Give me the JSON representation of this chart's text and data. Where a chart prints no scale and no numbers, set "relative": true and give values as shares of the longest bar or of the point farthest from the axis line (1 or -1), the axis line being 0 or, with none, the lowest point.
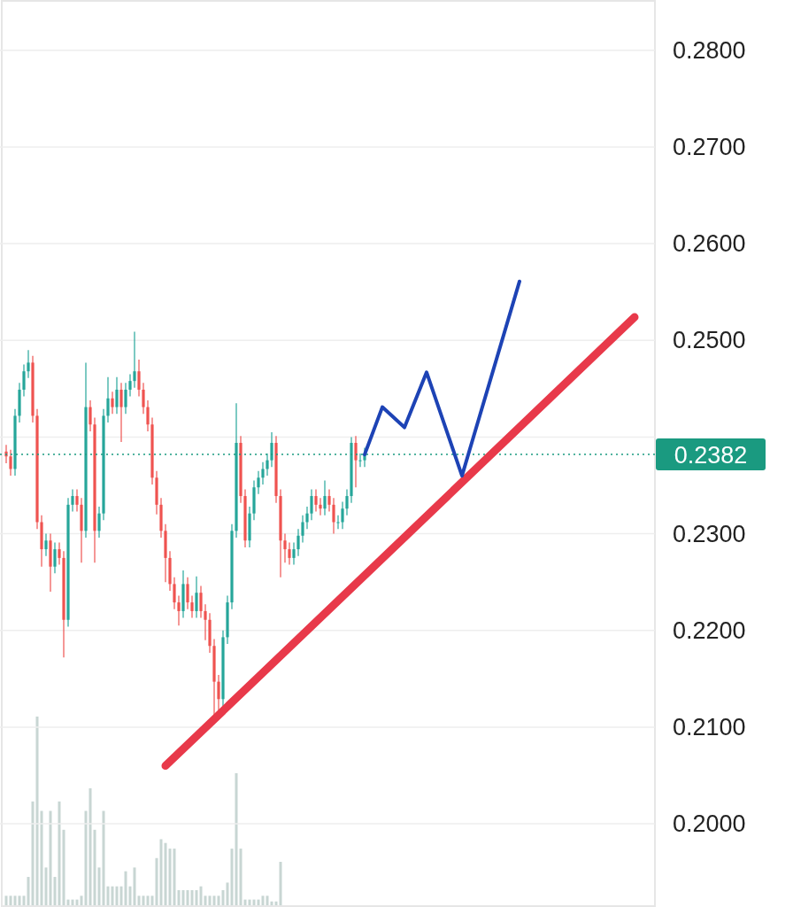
{
  "chart_data": [
    {
      "type": "candlestick",
      "tick_labels": "y",
      "grid": "y",
      "categories": [
        null,
        null,
        null,
        null,
        null,
        null,
        null,
        null,
        null,
        null,
        null,
        null,
        null,
        null,
        null,
        null,
        null,
        null,
        null,
        null,
        null,
        null,
        null,
        null,
        null,
        null,
        null,
        null,
        null,
        null,
        null,
        null,
        null,
        null,
        null,
        null,
        null,
        null,
        null,
        null,
        null,
        null,
        null,
        null,
        null,
        null,
        null,
        null,
        null,
        null,
        null,
        null,
        null,
        null,
        null,
        null,
        null,
        null,
        null,
        null,
        null,
        null,
        null,
        null,
        null,
        null,
        null,
        null,
        null,
        null,
        null,
        null,
        null,
        null,
        null,
        null,
        null,
        null,
        null,
        null,
        null,
        null,
        null,
        null,
        null,
        null,
        null,
        null,
        null,
        null,
        null,
        null,
        null,
        null,
        null,
        null,
        null,
        null,
        null,
        null,
        null,
        null,
        null,
        null,
        null,
        null,
        null,
        null,
        null,
        null,
        null,
        null,
        null,
        null,
        null,
        null,
        null,
        null,
        null,
        null,
        null,
        null,
        null,
        null,
        null,
        null,
        null,
        null,
        null,
        null,
        null,
        null,
        null,
        null,
        null,
        null,
        null,
        null,
        null,
        null,
        null,
        null,
        null
      ],
      "ohlc": [
        [
          0.2385,
          0.2392,
          0.2373,
          0.238
        ],
        [
          0.238,
          0.2387,
          0.236,
          0.2367
        ],
        [
          0.2367,
          0.2429,
          0.236,
          0.2422
        ],
        [
          0.2422,
          0.2456,
          0.2415,
          0.2449
        ],
        [
          0.2449,
          0.2475,
          0.2442,
          0.2468
        ],
        [
          0.2468,
          0.249,
          0.2461,
          0.2477
        ],
        [
          0.2477,
          0.2484,
          0.2415,
          0.2422
        ],
        [
          0.2422,
          0.2429,
          0.2305,
          0.2312
        ],
        [
          0.2312,
          0.2319,
          0.2266,
          0.2284
        ],
        [
          0.2284,
          0.23,
          0.2277,
          0.2293
        ],
        [
          0.2293,
          0.23,
          0.224,
          0.2266
        ],
        [
          0.2266,
          0.2291,
          0.2259,
          0.2284
        ],
        [
          0.2284,
          0.2291,
          0.2268,
          0.2275
        ],
        [
          0.2275,
          0.2282,
          0.2172,
          0.2211
        ],
        [
          0.2211,
          0.2337,
          0.2204,
          0.233
        ],
        [
          0.233,
          0.2346,
          0.2323,
          0.2339
        ],
        [
          0.2339,
          0.2346,
          0.2323,
          0.233
        ],
        [
          0.233,
          0.2337,
          0.227,
          0.2303
        ],
        [
          0.2303,
          0.2477,
          0.2296,
          0.2431
        ],
        [
          0.2431,
          0.2438,
          0.2406,
          0.2413
        ],
        [
          0.2413,
          0.242,
          0.227,
          0.2303
        ],
        [
          0.2303,
          0.2328,
          0.2296,
          0.2321
        ],
        [
          0.2321,
          0.2429,
          0.2314,
          0.2422
        ],
        [
          0.2422,
          0.2462,
          0.2415,
          0.244
        ],
        [
          0.244,
          0.2447,
          0.2424,
          0.2431
        ],
        [
          0.2431,
          0.2462,
          0.2424,
          0.2449
        ],
        [
          0.2449,
          0.2456,
          0.2395,
          0.2431
        ],
        [
          0.2431,
          0.2456,
          0.2424,
          0.2449
        ],
        [
          0.2449,
          0.2465,
          0.2442,
          0.2458
        ],
        [
          0.2458,
          0.2509,
          0.2451,
          0.2468
        ],
        [
          0.2468,
          0.248,
          0.2442,
          0.2449
        ],
        [
          0.2449,
          0.2456,
          0.2424,
          0.2431
        ],
        [
          0.2431,
          0.2438,
          0.2406,
          0.2413
        ],
        [
          0.2413,
          0.242,
          0.2351,
          0.2358
        ],
        [
          0.2358,
          0.2365,
          0.232,
          0.233
        ],
        [
          0.233,
          0.2337,
          0.2296,
          0.2303
        ],
        [
          0.2303,
          0.231,
          0.225,
          0.2275
        ],
        [
          0.2275,
          0.2282,
          0.2241,
          0.2248
        ],
        [
          0.2248,
          0.2255,
          0.2222,
          0.2229
        ],
        [
          0.2229,
          0.2236,
          0.2205,
          0.222
        ],
        [
          0.222,
          0.2262,
          0.2213,
          0.2248
        ],
        [
          0.2248,
          0.2255,
          0.2222,
          0.2229
        ],
        [
          0.2229,
          0.2236,
          0.2213,
          0.222
        ],
        [
          0.222,
          0.2256,
          0.2213,
          0.2239
        ],
        [
          0.2239,
          0.2246,
          0.2213,
          0.222
        ],
        [
          0.222,
          0.2227,
          0.219,
          0.2211
        ],
        [
          0.2211,
          0.2218,
          0.2177,
          0.2184
        ],
        [
          0.2184,
          0.2191,
          0.211,
          0.2147
        ],
        [
          0.2147,
          0.2154,
          0.211,
          0.2129
        ],
        [
          0.2129,
          0.22,
          0.2122,
          0.2193
        ],
        [
          0.2193,
          0.2236,
          0.2186,
          0.2229
        ],
        [
          0.2229,
          0.231,
          0.2222,
          0.2303
        ],
        [
          0.2303,
          0.2435,
          0.2296,
          0.2394
        ],
        [
          0.2394,
          0.2401,
          0.2332,
          0.2339
        ],
        [
          0.2339,
          0.2346,
          0.2286,
          0.2293
        ],
        [
          0.2293,
          0.2328,
          0.2286,
          0.2321
        ],
        [
          0.2321,
          0.2355,
          0.2314,
          0.2348
        ],
        [
          0.2348,
          0.2365,
          0.2341,
          0.2358
        ],
        [
          0.2358,
          0.2374,
          0.2351,
          0.2367
        ],
        [
          0.2367,
          0.2383,
          0.236,
          0.2376
        ],
        [
          0.2376,
          0.2405,
          0.2369,
          0.2394
        ],
        [
          0.2394,
          0.2401,
          0.2332,
          0.2339
        ],
        [
          0.2339,
          0.2346,
          0.2255,
          0.2293
        ],
        [
          0.2293,
          0.23,
          0.227,
          0.2284
        ],
        [
          0.2284,
          0.2291,
          0.2268,
          0.2275
        ],
        [
          0.2275,
          0.2291,
          0.2268,
          0.2284
        ],
        [
          0.2284,
          0.2305,
          0.2277,
          0.2298
        ],
        [
          0.2298,
          0.2319,
          0.2291,
          0.2312
        ],
        [
          0.2312,
          0.2328,
          0.2305,
          0.2321
        ],
        [
          0.2321,
          0.2346,
          0.2314,
          0.2339
        ],
        [
          0.2339,
          0.2346,
          0.2323,
          0.233
        ],
        [
          0.233,
          0.2337,
          0.2319,
          0.2326
        ],
        [
          0.2326,
          0.2355,
          0.2319,
          0.2339
        ],
        [
          0.2339,
          0.2346,
          0.2323,
          0.233
        ],
        [
          0.233,
          0.2337,
          0.23,
          0.2312
        ],
        [
          0.2312,
          0.2319,
          0.2305,
          0.2312
        ],
        [
          0.2312,
          0.2333,
          0.2305,
          0.2326
        ],
        [
          0.2326,
          0.2346,
          0.2319,
          0.2339
        ],
        [
          0.2339,
          0.24,
          0.2332,
          0.2394
        ],
        [
          0.2394,
          0.2401,
          0.2348,
          0.2376
        ],
        [
          0.2376,
          0.2383,
          0.2369,
          0.2376
        ],
        [
          0.2376,
          0.2389,
          0.2369,
          0.2382
        ],
        null,
        null,
        null,
        null,
        null,
        null,
        null,
        null,
        null,
        null,
        null,
        null,
        null,
        null,
        null,
        null,
        null,
        null,
        null,
        null,
        null,
        null,
        null,
        null,
        null,
        null,
        null,
        null,
        null,
        null,
        null,
        null,
        null,
        null,
        null,
        null,
        null,
        null,
        null,
        null,
        null,
        null,
        null,
        null,
        null,
        null,
        null,
        null,
        null,
        null,
        null,
        null,
        null,
        null,
        null,
        null,
        null,
        null,
        null,
        null,
        null
      ],
      "colors": [
        "#ef5350",
        "#ef5350",
        "#26a69a",
        "#26a69a",
        "#26a69a",
        "#26a69a",
        "#ef5350",
        "#ef5350",
        "#ef5350",
        "#26a69a",
        "#ef5350",
        "#26a69a",
        "#ef5350",
        "#ef5350",
        "#26a69a",
        "#26a69a",
        "#ef5350",
        "#ef5350",
        "#26a69a",
        "#ef5350",
        "#ef5350",
        "#26a69a",
        "#26a69a",
        "#26a69a",
        "#ef5350",
        "#26a69a",
        "#ef5350",
        "#26a69a",
        "#26a69a",
        "#26a69a",
        "#ef5350",
        "#ef5350",
        "#ef5350",
        "#ef5350",
        "#ef5350",
        "#ef5350",
        "#ef5350",
        "#ef5350",
        "#ef5350",
        "#ef5350",
        "#26a69a",
        "#ef5350",
        "#ef5350",
        "#26a69a",
        "#ef5350",
        "#ef5350",
        "#ef5350",
        "#ef5350",
        "#ef5350",
        "#26a69a",
        "#26a69a",
        "#26a69a",
        "#26a69a",
        "#ef5350",
        "#ef5350",
        "#26a69a",
        "#26a69a",
        "#26a69a",
        "#26a69a",
        "#26a69a",
        "#26a69a",
        "#ef5350",
        "#ef5350",
        "#ef5350",
        "#ef5350",
        "#26a69a",
        "#26a69a",
        "#26a69a",
        "#26a69a",
        "#26a69a",
        "#ef5350",
        "#ef5350",
        "#26a69a",
        "#ef5350",
        "#ef5350",
        "#26a69a",
        "#26a69a",
        "#26a69a",
        "#26a69a",
        "#ef5350",
        "#26a69a",
        "#26a69a",
        null,
        null,
        null,
        null,
        null,
        null,
        null,
        null,
        null,
        null,
        null,
        null,
        null,
        null,
        null,
        null,
        null,
        null,
        null,
        null,
        null,
        null,
        null,
        null,
        null,
        null,
        null,
        null,
        null,
        null,
        null,
        null,
        null,
        null,
        null,
        null,
        null,
        null,
        null,
        null,
        null,
        null,
        null,
        null,
        null,
        null,
        null,
        null,
        null,
        null,
        null,
        null,
        null,
        null,
        null,
        null,
        null,
        null,
        null,
        null,
        null
      ],
      "ylim": [
        0.1914,
        0.2852
      ],
      "yticks": [
        {
          "value": 0.2,
          "label": "0.2000"
        },
        {
          "value": 0.21,
          "label": "0.2100"
        },
        {
          "value": 0.22,
          "label": "0.2200"
        },
        {
          "value": 0.23,
          "label": "0.2300"
        },
        {
          "value": 0.24,
          "label": null
        },
        {
          "value": 0.25,
          "label": "0.2500"
        },
        {
          "value": 0.26,
          "label": "0.2600"
        },
        {
          "value": 0.27,
          "label": "0.2700"
        },
        {
          "value": 0.28,
          "label": "0.2800"
        }
      ],
      "ref_lines": [
        {
          "axis": "y",
          "value": 0.2382,
          "label": "0.2382",
          "color": "#1a9a80",
          "line_style": "dotted"
        }
      ],
      "series": [
        {
          "type": "line",
          "color": "#e8394a",
          "values": [
            null,
            null,
            null,
            null,
            null,
            null,
            null,
            null,
            null,
            null,
            null,
            null,
            null,
            null,
            null,
            null,
            null,
            null,
            null,
            null,
            null,
            null,
            null,
            null,
            null,
            null,
            null,
            null,
            null,
            null,
            null,
            null,
            null,
            null,
            null,
            null,
            0.206,
            null,
            null,
            null,
            null,
            null,
            null,
            null,
            null,
            null,
            null,
            null,
            null,
            null,
            null,
            null,
            null,
            null,
            null,
            null,
            null,
            null,
            null,
            null,
            null,
            null,
            null,
            null,
            null,
            null,
            null,
            null,
            null,
            null,
            null,
            null,
            null,
            null,
            null,
            null,
            null,
            null,
            null,
            null,
            null,
            null,
            null,
            null,
            null,
            null,
            null,
            null,
            null,
            null,
            null,
            null,
            null,
            null,
            null,
            null,
            null,
            null,
            null,
            null,
            null,
            null,
            null,
            null,
            null,
            null,
            null,
            null,
            null,
            null,
            null,
            null,
            null,
            null,
            null,
            null,
            null,
            null,
            null,
            null,
            null,
            null,
            null,
            null,
            null,
            null,
            null,
            null,
            null,
            null,
            null,
            null,
            null,
            null,
            null,
            null,
            null,
            null,
            null,
            null,
            null,
            null,
            0.2524
          ]
        },
        {
          "type": "line",
          "color": "#1d43b5",
          "values": [
            null,
            null,
            null,
            null,
            null,
            null,
            null,
            null,
            null,
            null,
            null,
            null,
            null,
            null,
            null,
            null,
            null,
            null,
            null,
            null,
            null,
            null,
            null,
            null,
            null,
            null,
            null,
            null,
            null,
            null,
            null,
            null,
            null,
            null,
            null,
            null,
            null,
            null,
            null,
            null,
            null,
            null,
            null,
            null,
            null,
            null,
            null,
            null,
            null,
            null,
            null,
            null,
            null,
            null,
            null,
            null,
            null,
            null,
            null,
            null,
            null,
            null,
            null,
            null,
            null,
            null,
            null,
            null,
            null,
            null,
            null,
            null,
            null,
            null,
            null,
            null,
            null,
            null,
            null,
            null,
            null,
            0.2382,
            null,
            null,
            null,
            0.2431,
            null,
            null,
            null,
            null,
            0.241,
            null,
            null,
            null,
            null,
            0.2467,
            null,
            null,
            null,
            null,
            null,
            null,
            null,
            0.236,
            null,
            null,
            null,
            null,
            null,
            null,
            null,
            null,
            null,
            null,
            null,
            null,
            0.2561,
            null,
            null,
            null,
            null,
            null,
            null,
            null,
            null,
            null,
            null,
            null,
            null,
            null,
            null,
            null,
            null,
            null,
            null,
            null,
            null,
            null,
            null,
            null,
            null,
            null,
            null
          ]
        }
      ]
    },
    {
      "type": "bar",
      "relative": true,
      "color": "#c8d6d3",
      "categories": [
        null,
        null,
        null,
        null,
        null,
        null,
        null,
        null,
        null,
        null,
        null,
        null,
        null,
        null,
        null,
        null,
        null,
        null,
        null,
        null,
        null,
        null,
        null,
        null,
        null,
        null,
        null,
        null,
        null,
        null,
        null,
        null,
        null,
        null,
        null,
        null,
        null,
        null,
        null,
        null,
        null,
        null,
        null,
        null,
        null,
        null,
        null,
        null,
        null,
        null,
        null,
        null,
        null,
        null,
        null,
        null,
        null,
        null,
        null,
        null,
        null,
        null,
        null
      ],
      "values": [
        0.05,
        0.05,
        0.05,
        0.05,
        0.05,
        0.15,
        0.55,
        1.0,
        0.5,
        0.2,
        0.5,
        0.15,
        0.55,
        0.4,
        0.03,
        0.03,
        0.03,
        0.05,
        0.5,
        0.62,
        0.4,
        0.2,
        0.5,
        0.1,
        0.1,
        0.1,
        0.1,
        0.18,
        0.1,
        0.2,
        0.05,
        0.05,
        0.05,
        0.05,
        0.25,
        0.35,
        0.33,
        0.3,
        0.3,
        0.08,
        0.08,
        0.08,
        0.08,
        0.08,
        0.1,
        0.05,
        0.05,
        0.05,
        0.05,
        0.08,
        0.12,
        0.3,
        0.7,
        0.3,
        0.03,
        0.03,
        0.03,
        0.03,
        0.05,
        0.05,
        0.02,
        0.02,
        0.23
      ]
    }
  ]
}
